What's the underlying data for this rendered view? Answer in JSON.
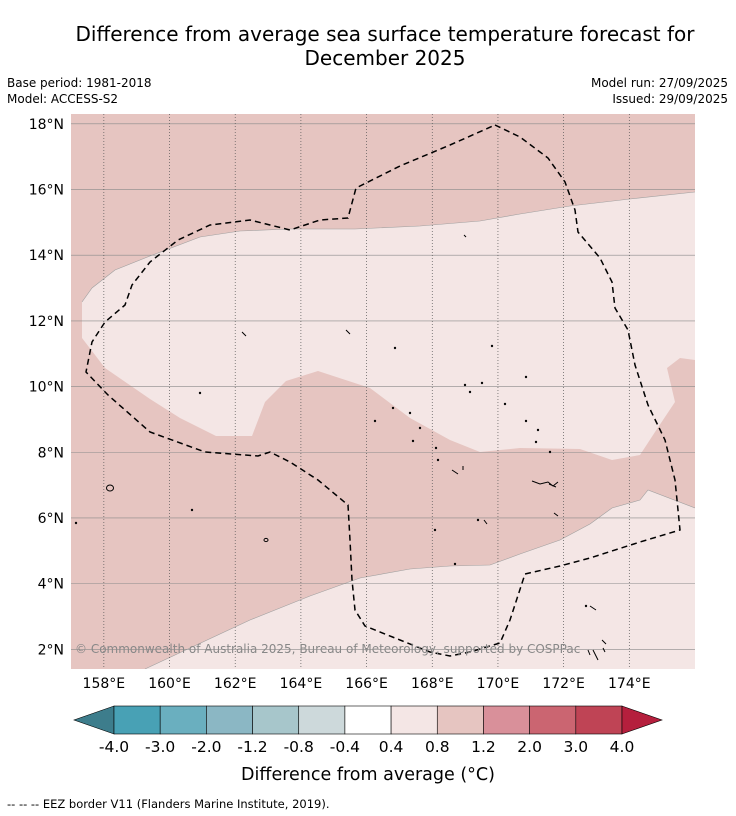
{
  "title_line1": "Difference from average sea surface temperature forecast for",
  "title_line2": "December 2025",
  "base_period": "Base period: 1981-2018",
  "model": "Model: ACCESS-S2",
  "model_run": "Model run: 27/09/2025",
  "issued": "Issued: 29/09/2025",
  "copyright": "© Commonwealth of Australia 2025, Bureau of Meteorology, supported by COSPPac",
  "footnote": "-- -- -- EEZ border V11 (Flanders Marine Institute, 2019).",
  "map_extent": {
    "lon_min": 157.0,
    "lon_max": 176.0,
    "lat_min": 1.4,
    "lat_max": 18.3
  },
  "lat_ticks": [
    {
      "value": 2,
      "label": "2°N"
    },
    {
      "value": 4,
      "label": "4°N"
    },
    {
      "value": 6,
      "label": "6°N"
    },
    {
      "value": 8,
      "label": "8°N"
    },
    {
      "value": 10,
      "label": "10°N"
    },
    {
      "value": 12,
      "label": "12°N"
    },
    {
      "value": 14,
      "label": "14°N"
    },
    {
      "value": 16,
      "label": "16°N"
    },
    {
      "value": 18,
      "label": "18°N"
    }
  ],
  "lon_ticks": [
    {
      "value": 158,
      "label": "158°E"
    },
    {
      "value": 160,
      "label": "160°E"
    },
    {
      "value": 162,
      "label": "162°E"
    },
    {
      "value": 164,
      "label": "164°E"
    },
    {
      "value": 166,
      "label": "166°E"
    },
    {
      "value": 168,
      "label": "168°E"
    },
    {
      "value": 170,
      "label": "170°E"
    },
    {
      "value": 172,
      "label": "172°E"
    },
    {
      "value": 174,
      "label": "174°E"
    }
  ],
  "colorbar": {
    "title": "Difference from average (°C)",
    "boundary_labels": [
      "-4.0",
      "-3.0",
      "-2.0",
      "-1.2",
      "-0.8",
      "-0.4",
      "0.4",
      "0.8",
      "1.2",
      "2.0",
      "3.0",
      "4.0"
    ],
    "colors": [
      "#3d7d8c",
      "#48a1b5",
      "#6aafbf",
      "#8bb7c4",
      "#a7c6cb",
      "#cdd9db",
      "#ffffff",
      "#f4e6e5",
      "#e6c5c1",
      "#d9909a",
      "#cb6571",
      "#bf4455",
      "#b51f3d"
    ]
  },
  "contour_colors": {
    "band_0.4_0.8": "#f4e6e5",
    "band_0.8_1.2": "#e6c5c1"
  }
}
